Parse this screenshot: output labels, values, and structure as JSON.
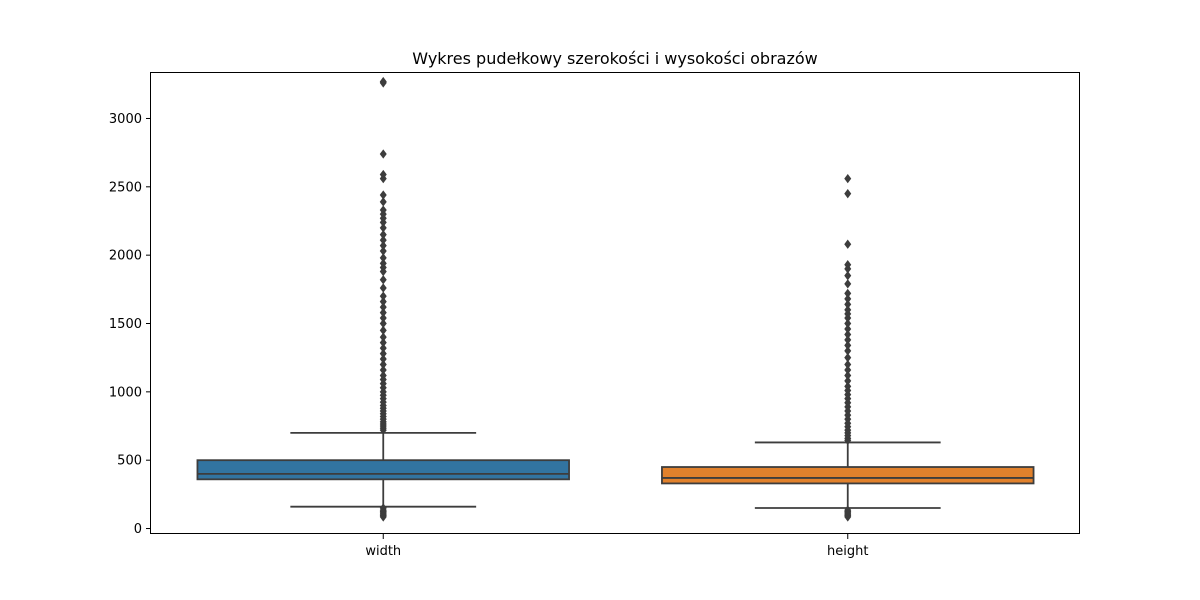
{
  "chart_data": {
    "type": "box",
    "title": "Wykres pudełkowy szerokości i wysokości obrazów",
    "xlabel": "",
    "ylabel": "",
    "categories": [
      "width",
      "height"
    ],
    "ylim": [
      -40,
      3340
    ],
    "yticks": [
      0,
      500,
      1000,
      1500,
      2000,
      2500,
      3000
    ],
    "grid": false,
    "boxes": [
      {
        "category": "width",
        "color": "#3274a1",
        "whisker_low": 160,
        "q1": 360,
        "median": 400,
        "q3": 500,
        "whisker_high": 700,
        "outliers": [
          85,
          95,
          105,
          115,
          125,
          135,
          150,
          720,
          735,
          750,
          765,
          780,
          800,
          820,
          840,
          860,
          880,
          900,
          925,
          950,
          975,
          1000,
          1030,
          1060,
          1090,
          1120,
          1160,
          1200,
          1240,
          1280,
          1320,
          1360,
          1400,
          1450,
          1500,
          1540,
          1580,
          1620,
          1660,
          1700,
          1760,
          1820,
          1880,
          1910,
          1940,
          1980,
          2030,
          2070,
          2110,
          2150,
          2200,
          2240,
          2270,
          2300,
          2330,
          2390,
          2440,
          2560,
          2590,
          2740,
          3260,
          3270
        ]
      },
      {
        "category": "height",
        "color": "#e1812c",
        "whisker_low": 150,
        "q1": 330,
        "median": 370,
        "q3": 450,
        "whisker_high": 630,
        "outliers": [
          85,
          95,
          105,
          115,
          125,
          135,
          645,
          660,
          680,
          700,
          720,
          745,
          770,
          800,
          830,
          860,
          890,
          920,
          950,
          980,
          1010,
          1040,
          1080,
          1120,
          1160,
          1200,
          1250,
          1300,
          1340,
          1380,
          1420,
          1460,
          1500,
          1540,
          1570,
          1600,
          1640,
          1680,
          1720,
          1790,
          1850,
          1900,
          1930,
          2080,
          2450,
          2560
        ]
      }
    ]
  }
}
